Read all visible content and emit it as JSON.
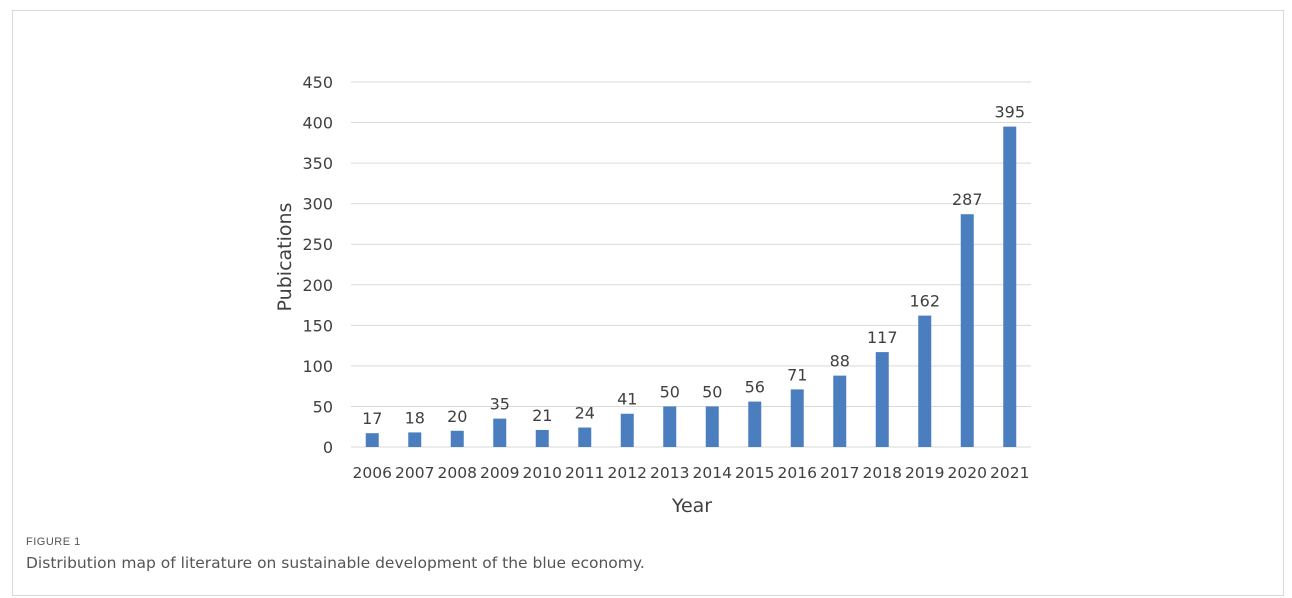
{
  "figure": {
    "label": "FIGURE 1",
    "caption": "Distribution map of literature on sustainable development of the blue economy."
  },
  "chart_data": {
    "type": "bar",
    "categories": [
      "2006",
      "2007",
      "2008",
      "2009",
      "2010",
      "2011",
      "2012",
      "2013",
      "2014",
      "2015",
      "2016",
      "2017",
      "2018",
      "2019",
      "2020",
      "2021"
    ],
    "values": [
      17,
      18,
      20,
      35,
      21,
      24,
      41,
      50,
      50,
      56,
      71,
      88,
      117,
      162,
      287,
      395
    ],
    "title": "",
    "xlabel": "Year",
    "ylabel": "Pubications",
    "ylim": [
      0,
      450
    ],
    "yticks": [
      0,
      50,
      100,
      150,
      200,
      250,
      300,
      350,
      400,
      450
    ],
    "grid": true,
    "data_labels": true,
    "bar_color": "#4a7ebf",
    "grid_color": "#d9d9d9"
  }
}
